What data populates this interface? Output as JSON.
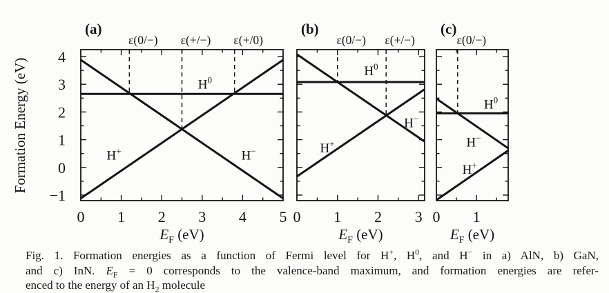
{
  "figure": {
    "name": "Fig. 1",
    "y_axis_label": "Formation Energy (eV)",
    "x_axis_label": {
      "symbol": "E",
      "sub": "F",
      "unit": " (eV)"
    },
    "colors": {
      "ink": "#141414",
      "background": "#fcfcfa"
    }
  },
  "chart_data": [
    {
      "type": "line",
      "panel": "a",
      "title": "(a)",
      "material": "AlN",
      "xlim": [
        0,
        5
      ],
      "ylim": [
        -1.2,
        4.25
      ],
      "x_major_ticks": [
        0,
        1,
        2,
        3,
        4,
        5
      ],
      "x_tick_labels": [
        "0",
        "1",
        "2",
        "3",
        "4",
        "5"
      ],
      "y_major_ticks": [
        -1,
        0,
        1,
        2,
        3,
        4
      ],
      "y_tick_labels": [
        "−1",
        "0",
        "1",
        "2",
        "3",
        "4"
      ],
      "minor_tick_step": 0.5,
      "show_y_tick_labels": true,
      "series": [
        {
          "id": "h-plus",
          "name": "H+",
          "label_base": "H",
          "label_sup": "+",
          "points": [
            [
              0,
              -1.12
            ],
            [
              5,
              3.88
            ]
          ],
          "label_pos": [
            0.82,
            0.45
          ]
        },
        {
          "id": "h-zero",
          "name": "H0",
          "label_base": "H",
          "label_sup": "0",
          "points": [
            [
              0,
              2.65
            ],
            [
              5,
              2.65
            ]
          ],
          "label_pos": [
            3.07,
            3.02
          ]
        },
        {
          "id": "h-minus",
          "name": "H-",
          "label_base": "H",
          "label_sup": "−",
          "points": [
            [
              0,
              3.88
            ],
            [
              5,
              -1.12
            ]
          ],
          "label_pos": [
            4.15,
            0.45
          ]
        }
      ],
      "transitions": [
        {
          "label": "ε(0/−)",
          "x": 1.2,
          "y_end": 2.65
        },
        {
          "label": "ε(+/−)",
          "x": 2.5,
          "y_end": 1.4
        },
        {
          "label": "ε(+/0)",
          "x": 3.8,
          "y_end": 2.65
        }
      ]
    },
    {
      "type": "line",
      "panel": "b",
      "title": "(b)",
      "material": "GaN",
      "xlim": [
        0,
        3.15
      ],
      "ylim": [
        -1.2,
        4.25
      ],
      "x_major_ticks": [
        0,
        1,
        2,
        3
      ],
      "x_tick_labels": [
        "0",
        "1",
        "2",
        "3"
      ],
      "y_major_ticks": [
        -1,
        0,
        1,
        2,
        3,
        4
      ],
      "y_tick_labels": [
        "−1",
        "0",
        "1",
        "2",
        "3",
        "4"
      ],
      "minor_tick_step": 0.5,
      "show_y_tick_labels": false,
      "series": [
        {
          "id": "h-plus",
          "name": "H+",
          "label_base": "H",
          "label_sup": "+",
          "points": [
            [
              0,
              -0.33
            ],
            [
              3.15,
              2.82
            ]
          ],
          "label_pos": [
            0.75,
            0.72
          ]
        },
        {
          "id": "h-zero",
          "name": "H0",
          "label_base": "H",
          "label_sup": "0",
          "points": [
            [
              0,
              3.08
            ],
            [
              3.15,
              3.08
            ]
          ],
          "label_pos": [
            1.83,
            3.5
          ]
        },
        {
          "id": "h-minus",
          "name": "H-",
          "label_base": "H",
          "label_sup": "−",
          "points": [
            [
              0,
              4.08
            ],
            [
              3.15,
              0.93
            ]
          ],
          "label_pos": [
            2.82,
            1.62
          ]
        }
      ],
      "transitions": [
        {
          "label": "ε(0/−)",
          "x": 1.0,
          "y_end": 3.08
        },
        {
          "label": "ε(+/−)",
          "x": 2.2,
          "y_end": 1.88
        }
      ]
    },
    {
      "type": "line",
      "panel": "c",
      "title": "(c)",
      "material": "InN",
      "xlim": [
        0,
        1.79
      ],
      "ylim": [
        -1.2,
        4.25
      ],
      "x_major_ticks": [
        0,
        1
      ],
      "x_tick_labels": [
        "0",
        "1"
      ],
      "y_major_ticks": [
        -1,
        0,
        1,
        2,
        3,
        4
      ],
      "y_tick_labels": [
        "−1",
        "0",
        "1",
        "2",
        "3",
        "4"
      ],
      "minor_tick_step": 0.5,
      "show_y_tick_labels": false,
      "series": [
        {
          "id": "h-plus",
          "name": "H+",
          "label_base": "H",
          "label_sup": "+",
          "points": [
            [
              0,
              -1.18
            ],
            [
              1.79,
              0.61
            ]
          ],
          "label_pos": [
            0.83,
            -0.05
          ]
        },
        {
          "id": "h-zero",
          "name": "H0",
          "label_base": "H",
          "label_sup": "0",
          "points": [
            [
              0,
              1.95
            ],
            [
              1.79,
              1.95
            ]
          ],
          "label_pos": [
            1.36,
            2.3
          ]
        },
        {
          "id": "h-minus",
          "name": "H-",
          "label_base": "H",
          "label_sup": "−",
          "points": [
            [
              0,
              2.48
            ],
            [
              1.79,
              0.69
            ]
          ],
          "label_pos": [
            0.93,
            0.93
          ]
        }
      ],
      "transitions": [
        {
          "label": "ε(0/−)",
          "x": 0.53,
          "y_end": 1.95
        }
      ]
    }
  ],
  "caption": {
    "lines": [
      [
        {
          "t": "Fig. 1.  Formation energies as a function of Fermi level for H"
        },
        {
          "t": "+",
          "sup": true
        },
        {
          "t": ", H"
        },
        {
          "t": "0",
          "sup": true
        },
        {
          "t": ", and H"
        },
        {
          "t": "−",
          "sup": true
        },
        {
          "t": " in a) AlN,  b) GaN,"
        }
      ],
      [
        {
          "t": "and c) InN. "
        },
        {
          "t": "E",
          "italic": true
        },
        {
          "t": "F",
          "sub": true
        },
        {
          "t": " = 0 corresponds to the valence-band maximum, and formation energies are refer-"
        }
      ],
      [
        {
          "t": "enced to the energy of an H"
        },
        {
          "t": "2",
          "sub": true
        },
        {
          "t": " molecule"
        }
      ]
    ]
  }
}
